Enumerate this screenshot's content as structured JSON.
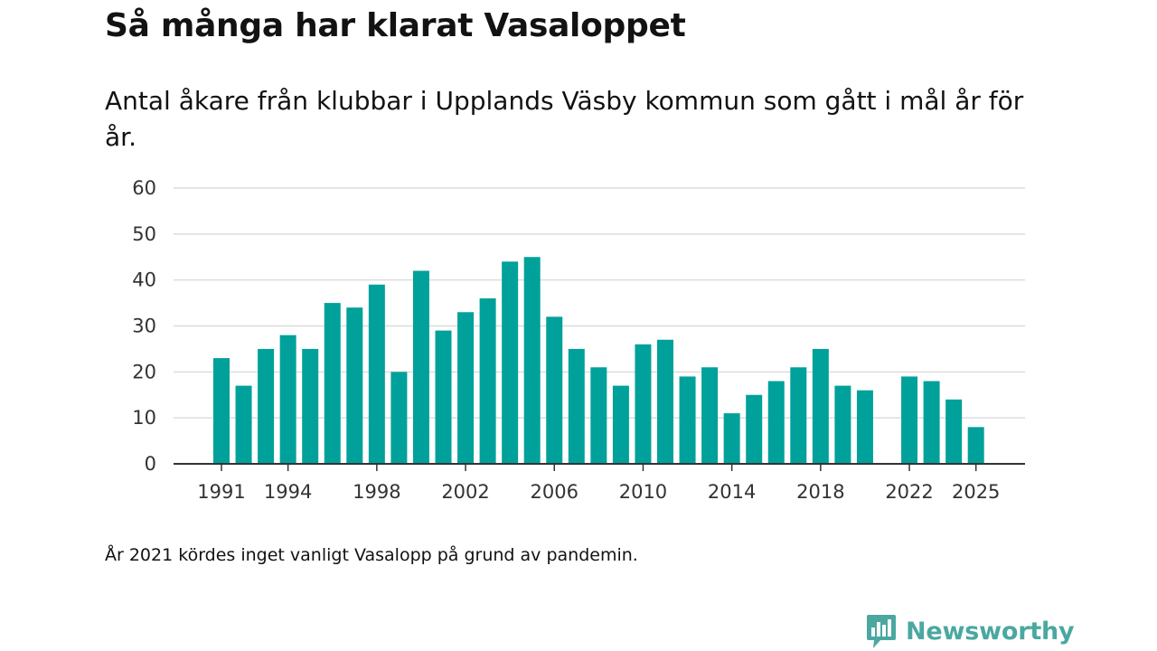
{
  "chart_data": {
    "type": "bar",
    "title": "Så många har klarat Vasaloppet",
    "subtitle": "Antal åkare från klubbar i Upplands Väsby kommun som gått i mål år för år.",
    "xlabel": "",
    "ylabel": "",
    "ylim": [
      0,
      60
    ],
    "yticks": [
      0,
      10,
      20,
      30,
      40,
      50,
      60
    ],
    "xticks": [
      1991,
      1994,
      1998,
      2002,
      2006,
      2010,
      2014,
      2018,
      2022,
      2025
    ],
    "categories": [
      1991,
      1992,
      1993,
      1994,
      1995,
      1996,
      1997,
      1998,
      1999,
      2000,
      2001,
      2002,
      2003,
      2004,
      2005,
      2006,
      2007,
      2008,
      2009,
      2010,
      2011,
      2012,
      2013,
      2014,
      2015,
      2016,
      2017,
      2018,
      2019,
      2020,
      2021,
      2022,
      2023,
      2024,
      2025
    ],
    "values": [
      23,
      17,
      25,
      28,
      25,
      35,
      34,
      39,
      20,
      42,
      29,
      33,
      36,
      44,
      45,
      32,
      25,
      21,
      17,
      26,
      27,
      19,
      21,
      11,
      15,
      18,
      21,
      25,
      17,
      16,
      null,
      19,
      18,
      14,
      8
    ],
    "bar_color": "#00a19a",
    "grid": true
  },
  "note": "År 2021 kördes inget vanligt Vasalopp på grund av pandemin.",
  "logo": {
    "text": "Newsworthy",
    "icon": "newsworthy-chart-icon"
  }
}
